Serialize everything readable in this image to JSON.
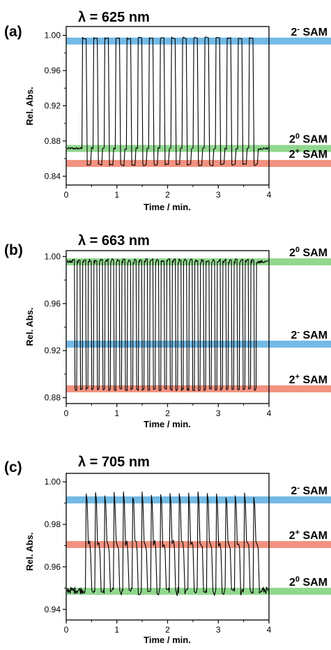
{
  "colors": {
    "minus": "#5aaee0",
    "zero": "#7ed07a",
    "plus": "#f07f6a"
  },
  "chart_data": [
    {
      "type": "line",
      "panel": "(a)",
      "title": "λ = 625 nm",
      "xlabel": "Time / min.",
      "ylabel": "Rel. Abs.",
      "xlim": [
        0,
        4
      ],
      "ylim": [
        0.83,
        1.01
      ],
      "xticks": [
        "0",
        "1",
        "2",
        "3",
        "4"
      ],
      "yticks": [
        "0.84",
        "0.88",
        "0.92",
        "0.96",
        "1.00"
      ],
      "ytick_values": [
        0.84,
        0.88,
        0.92,
        0.96,
        1.0
      ],
      "bands": [
        {
          "base": "2",
          "sup": "-",
          "suffix": "SAM",
          "y": 0.9935,
          "color": "minus"
        },
        {
          "base": "2",
          "sup": "0",
          "suffix": "SAM",
          "y": 0.8715,
          "color": "zero"
        },
        {
          "base": "2",
          "sup": "+",
          "suffix": "SAM",
          "y": 0.8545,
          "color": "plus"
        }
      ],
      "trace": {
        "baseline": 0.8715,
        "start": 0.31,
        "end": 3.82,
        "cycles": 16,
        "high": 0.997,
        "low": 0.853,
        "noise": 0.0012
      }
    },
    {
      "type": "line",
      "panel": "(b)",
      "title": "λ = 663 nm",
      "xlabel": "Time / min.",
      "ylabel": "Rel. Abs.",
      "xlim": [
        0,
        4
      ],
      "ylim": [
        0.875,
        1.005
      ],
      "xticks": [
        "0",
        "1",
        "2",
        "3",
        "4"
      ],
      "yticks": [
        "0.88",
        "0.92",
        "0.96",
        "1.00"
      ],
      "ytick_values": [
        0.88,
        0.92,
        0.96,
        1.0
      ],
      "bands": [
        {
          "base": "2",
          "sup": "0",
          "suffix": "SAM",
          "y": 0.9955,
          "color": "zero"
        },
        {
          "base": "2",
          "sup": "-",
          "suffix": "SAM",
          "y": 0.9255,
          "color": "minus"
        },
        {
          "base": "2",
          "sup": "+",
          "suffix": "SAM",
          "y": 0.8875,
          "color": "plus"
        }
      ],
      "trace": {
        "baseline": 0.9955,
        "start": 0.12,
        "end": 3.77,
        "cycles": 33,
        "high": 0.997,
        "low": 0.887,
        "noise": 0.0012
      }
    },
    {
      "type": "line",
      "panel": "(c)",
      "title": "λ = 705 nm",
      "xlabel": "Time / min.",
      "ylabel": "Rel. Abs.",
      "xlim": [
        0,
        4
      ],
      "ylim": [
        0.935,
        1.004
      ],
      "xticks": [
        "0",
        "1",
        "2",
        "3",
        "4"
      ],
      "yticks": [
        "0.94",
        "0.96",
        "0.98",
        "1.00"
      ],
      "ytick_values": [
        0.94,
        0.96,
        0.98,
        1.0
      ],
      "bands": [
        {
          "base": "2",
          "sup": "-",
          "suffix": "SAM",
          "y": 0.9915,
          "color": "minus"
        },
        {
          "base": "2",
          "sup": "+",
          "suffix": "SAM",
          "y": 0.9705,
          "color": "plus"
        },
        {
          "base": "2",
          "sup": "0",
          "suffix": "SAM",
          "y": 0.9485,
          "color": "zero"
        }
      ],
      "trace": {
        "baseline": 0.949,
        "start": 0.38,
        "end": 3.87,
        "cycles": 19,
        "high": 0.994,
        "low": 0.948,
        "plateau": 0.971,
        "noise": 0.0016
      }
    }
  ]
}
